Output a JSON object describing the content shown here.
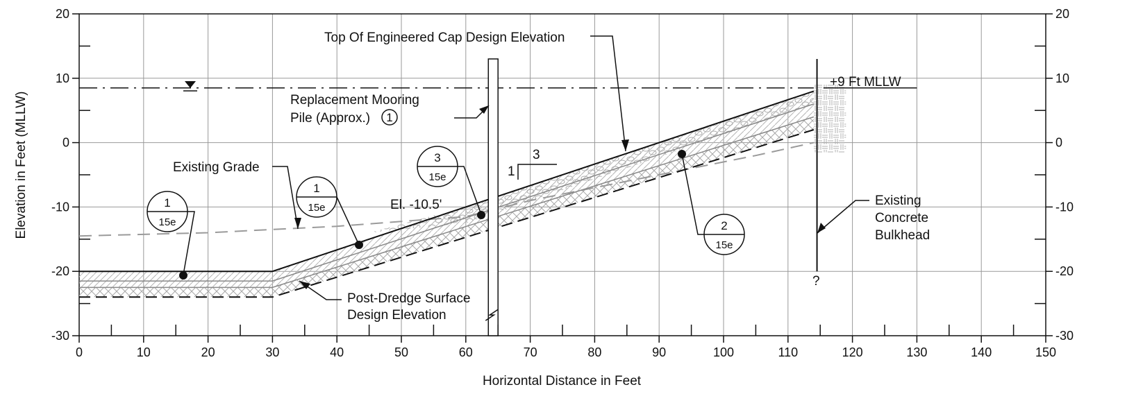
{
  "chart_data": {
    "type": "cross-section",
    "xlabel": "Horizontal Distance in Feet",
    "ylabel": "Elevation in Feet (MLLW)",
    "xlim": [
      0,
      150
    ],
    "ylim": [
      -30,
      20
    ],
    "x_ticks": [
      0,
      10,
      20,
      30,
      40,
      50,
      60,
      70,
      80,
      90,
      100,
      110,
      120,
      130,
      140,
      150
    ],
    "y_ticks": [
      20,
      10,
      0,
      -10,
      -20,
      -30
    ],
    "grid": true,
    "water_level": 8.5,
    "existing_grade": [
      [
        0,
        -14.5
      ],
      [
        20,
        -14
      ],
      [
        40,
        -13
      ],
      [
        60,
        -11.5
      ],
      [
        70,
        -9
      ],
      [
        90,
        -5
      ],
      [
        105,
        -2
      ],
      [
        114,
        0
      ]
    ],
    "cap_top": [
      [
        0,
        -20
      ],
      [
        30,
        -20
      ],
      [
        114,
        8
      ]
    ],
    "cap_sub1": [
      [
        0,
        -21.5
      ],
      [
        30,
        -21.5
      ],
      [
        114,
        6
      ]
    ],
    "cap_sub2": [
      [
        0,
        -22.5
      ],
      [
        30,
        -22.5
      ],
      [
        114,
        4
      ]
    ],
    "dredge_surface": [
      [
        0,
        -24
      ],
      [
        30,
        -24
      ],
      [
        114,
        2
      ]
    ],
    "pile": {
      "x_left": 63.5,
      "x_right": 65,
      "top": 13,
      "bottom": -30
    },
    "bulkhead": {
      "x": 114.5,
      "top": 13,
      "bottom": -20
    },
    "slope_ratio": {
      "rise": "1",
      "run": "3"
    }
  },
  "labels": {
    "top_cap": "Top Of Engineered Cap Design Elevation",
    "mllw": "+9 Ft MLLW",
    "pile_line1": "Replacement Mooring",
    "pile_line2": "Pile (Approx.)",
    "pile_marker": "1",
    "existing_grade": "Existing Grade",
    "elevation": "El. -10.5'",
    "bulkhead_line1": "Existing",
    "bulkhead_line2": "Concrete",
    "bulkhead_line3": "Bulkhead",
    "bulkhead_unknown": "?",
    "dredge_line1": "Post-Dredge Surface",
    "dredge_line2": "Design Elevation"
  },
  "detail_tags": [
    {
      "number": "1",
      "sheet": "15e"
    },
    {
      "number": "1",
      "sheet": "15e"
    },
    {
      "number": "3",
      "sheet": "15e"
    },
    {
      "number": "2",
      "sheet": "15e"
    }
  ],
  "colors": {
    "line": "#111111",
    "grid": "#999999",
    "existing_grade": "#9a9a9a",
    "hatch": "#a8a8a8"
  }
}
